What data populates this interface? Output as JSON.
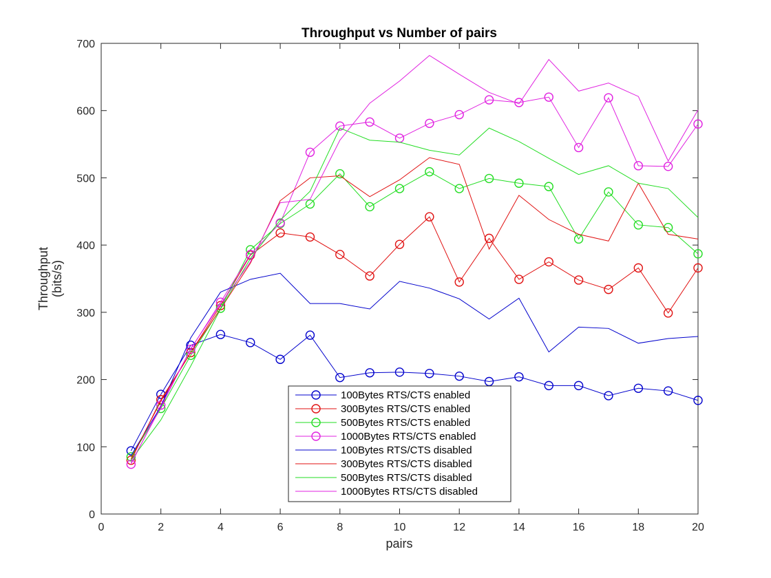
{
  "chart_data": {
    "type": "line",
    "title": "Throughput vs Number of pairs",
    "xlabel": "pairs",
    "ylabel_lines": [
      "Throughput",
      "(bits/s)"
    ],
    "xlim": [
      0,
      20
    ],
    "ylim": [
      0,
      700
    ],
    "xticks": [
      0,
      2,
      4,
      6,
      8,
      10,
      12,
      14,
      16,
      18,
      20
    ],
    "yticks": [
      0,
      100,
      200,
      300,
      400,
      500,
      600,
      700
    ],
    "grid": false,
    "legend_position": "bottom-center",
    "x": [
      1,
      2,
      3,
      4,
      5,
      6,
      7,
      8,
      9,
      10,
      11,
      12,
      13,
      14,
      15,
      16,
      17,
      18,
      19,
      20
    ],
    "series": [
      {
        "name": "100Bytes RTS/CTS enabled",
        "color": "#0000cc",
        "marker": "circle",
        "values": [
          94,
          178,
          251,
          267,
          255,
          230,
          266,
          203,
          210,
          211,
          209,
          205,
          197,
          204,
          191,
          191,
          176,
          187,
          183,
          169
        ]
      },
      {
        "name": "300Bytes RTS/CTS enabled",
        "color": "#e01010",
        "marker": "circle",
        "values": [
          80,
          170,
          240,
          310,
          385,
          418,
          412,
          386,
          354,
          401,
          442,
          345,
          410,
          349,
          375,
          348,
          334,
          366,
          299,
          366
        ]
      },
      {
        "name": "500Bytes RTS/CTS enabled",
        "color": "#22dd22",
        "marker": "circle",
        "values": [
          85,
          157,
          236,
          306,
          393,
          432,
          461,
          506,
          457,
          484,
          509,
          484,
          499,
          492,
          487,
          409,
          479,
          430,
          426,
          387
        ]
      },
      {
        "name": "1000Bytes RTS/CTS enabled",
        "color": "#e020e0",
        "marker": "circle",
        "values": [
          74,
          162,
          245,
          315,
          386,
          433,
          538,
          577,
          583,
          559,
          581,
          594,
          616,
          612,
          620,
          545,
          619,
          518,
          517,
          580
        ]
      },
      {
        "name": "100Bytes RTS/CTS disabled",
        "color": "#0000cc",
        "marker": "none",
        "values": [
          87,
          160,
          262,
          330,
          349,
          358,
          313,
          313,
          305,
          346,
          336,
          320,
          290,
          321,
          241,
          278,
          276,
          254,
          261,
          264
        ]
      },
      {
        "name": "300Bytes RTS/CTS disabled",
        "color": "#e01010",
        "marker": "none",
        "values": [
          82,
          168,
          240,
          305,
          373,
          466,
          500,
          503,
          472,
          497,
          530,
          520,
          394,
          474,
          438,
          416,
          406,
          492,
          416,
          409
        ]
      },
      {
        "name": "500Bytes RTS/CTS disabled",
        "color": "#22dd22",
        "marker": "none",
        "values": [
          80,
          140,
          220,
          305,
          380,
          437,
          480,
          574,
          556,
          553,
          541,
          534,
          574,
          554,
          529,
          505,
          518,
          492,
          484,
          441
        ]
      },
      {
        "name": "1000Bytes RTS/CTS disabled",
        "color": "#e020e0",
        "marker": "none",
        "values": [
          76,
          159,
          246,
          312,
          375,
          463,
          468,
          556,
          611,
          644,
          682,
          654,
          627,
          610,
          676,
          629,
          641,
          621,
          525,
          601
        ]
      }
    ]
  }
}
